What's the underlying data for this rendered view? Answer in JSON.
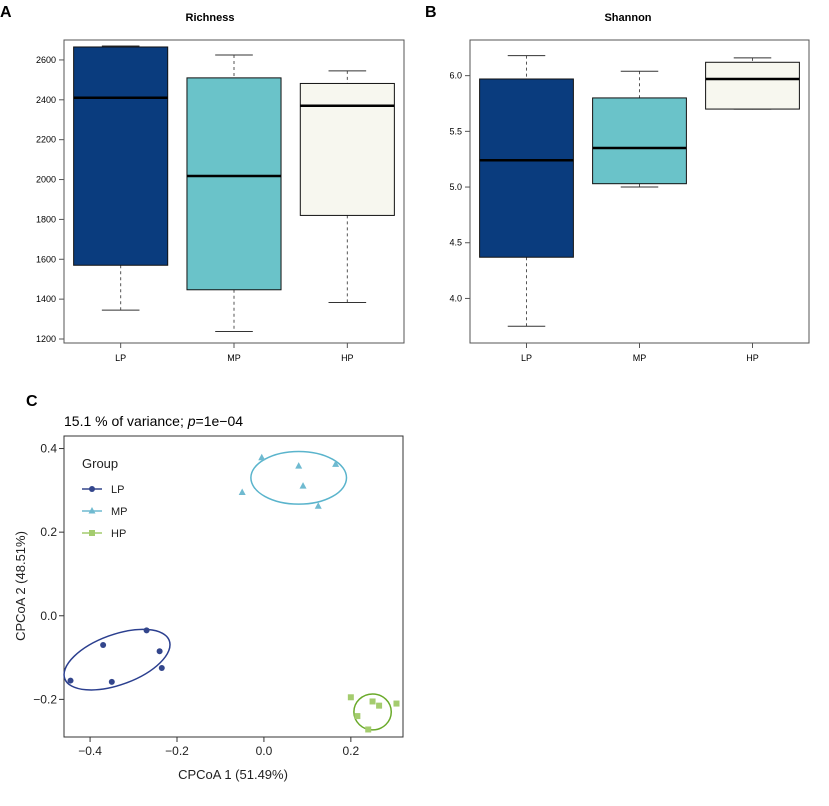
{
  "panels": {
    "A": {
      "label": "A",
      "chart_data": {
        "type": "boxplot",
        "title": "Richness",
        "categories": [
          "LP",
          "MP",
          "HP"
        ],
        "ylim": [
          1180,
          2700
        ],
        "yticks": [
          1200,
          1400,
          1600,
          1800,
          2000,
          2200,
          2400,
          2600
        ],
        "boxes": [
          {
            "name": "LP",
            "min": 1345,
            "q1": 1570,
            "median": 2410,
            "q3": 2665,
            "max": 2670
          },
          {
            "name": "MP",
            "min": 1238,
            "q1": 1447,
            "median": 2018,
            "q3": 2510,
            "max": 2625
          },
          {
            "name": "HP",
            "min": 1383,
            "q1": 1820,
            "median": 2370,
            "q3": 2482,
            "max": 2545
          }
        ]
      }
    },
    "B": {
      "label": "B",
      "chart_data": {
        "type": "boxplot",
        "title": "Shannon",
        "categories": [
          "LP",
          "MP",
          "HP"
        ],
        "ylim": [
          3.6,
          6.32
        ],
        "yticks": [
          4.0,
          4.5,
          5.0,
          5.5,
          6.0
        ],
        "ytick_labels": [
          "4.0",
          "4.5",
          "5.0",
          "5.5",
          "6.0"
        ],
        "boxes": [
          {
            "name": "LP",
            "min": 3.75,
            "q1": 4.37,
            "median": 5.24,
            "q3": 5.97,
            "max": 6.18
          },
          {
            "name": "MP",
            "min": 5.0,
            "q1": 5.03,
            "median": 5.35,
            "q3": 5.8,
            "max": 6.04
          },
          {
            "name": "HP",
            "min": 5.7,
            "q1": 5.7,
            "median": 5.97,
            "q3": 6.12,
            "max": 6.16
          }
        ]
      }
    },
    "C": {
      "label": "C",
      "chart_data": {
        "type": "scatter",
        "subtitle_prefix": "15.1 % of variance; ",
        "subtitle_p": "p",
        "subtitle_suffix": "=1e−04",
        "xlabel": "CPCoA 1 (51.49%)",
        "ylabel": "CPCoA 2 (48.51%)",
        "xlim": [
          -0.46,
          0.32
        ],
        "ylim": [
          -0.29,
          0.43
        ],
        "xticks": [
          -0.4,
          -0.2,
          0.0,
          0.2
        ],
        "xtick_labels": [
          "−0.4",
          "−0.2",
          "0.0",
          "0.2"
        ],
        "yticks": [
          -0.2,
          0.0,
          0.2,
          0.4
        ],
        "ytick_labels": [
          "−0.2",
          "0.0",
          "0.2",
          "0.4"
        ],
        "legend_title": "Group",
        "legend_position": "top-left",
        "series": [
          {
            "name": "LP",
            "marker": "circle",
            "color": "#33468c",
            "ellipse_color": "#2b3f8f",
            "points": [
              [
                -0.445,
                -0.155
              ],
              [
                -0.37,
                -0.07
              ],
              [
                -0.35,
                -0.158
              ],
              [
                -0.27,
                -0.035
              ],
              [
                -0.24,
                -0.085
              ],
              [
                -0.235,
                -0.125
              ]
            ],
            "ellipse": {
              "cx": -0.338,
              "cy": -0.105,
              "rx": 0.128,
              "ry": 0.06,
              "angle_deg": 20
            }
          },
          {
            "name": "MP",
            "marker": "triangle",
            "color": "#6fbad0",
            "ellipse_color": "#5ab4cc",
            "points": [
              [
                -0.05,
                0.295
              ],
              [
                -0.005,
                0.378
              ],
              [
                0.08,
                0.358
              ],
              [
                0.09,
                0.31
              ],
              [
                0.125,
                0.262
              ],
              [
                0.165,
                0.362
              ]
            ],
            "ellipse": {
              "cx": 0.08,
              "cy": 0.33,
              "rx": 0.11,
              "ry": 0.063,
              "angle_deg": 0
            }
          },
          {
            "name": "HP",
            "marker": "square",
            "color": "#a4cc6e",
            "ellipse_color": "#6aaa2a",
            "points": [
              [
                0.2,
                -0.195
              ],
              [
                0.215,
                -0.24
              ],
              [
                0.24,
                -0.272
              ],
              [
                0.25,
                -0.205
              ],
              [
                0.265,
                -0.215
              ],
              [
                0.305,
                -0.21
              ]
            ],
            "ellipse": {
              "cx": 0.25,
              "cy": -0.23,
              "rx": 0.043,
              "ry": 0.043,
              "angle_deg": 0
            }
          }
        ]
      }
    }
  },
  "colors": {
    "LP": "#0a3c7e",
    "MP": "#6ac3c9",
    "HP": "#f7f7ef",
    "axis": "#666666",
    "whisker": "#555555"
  }
}
